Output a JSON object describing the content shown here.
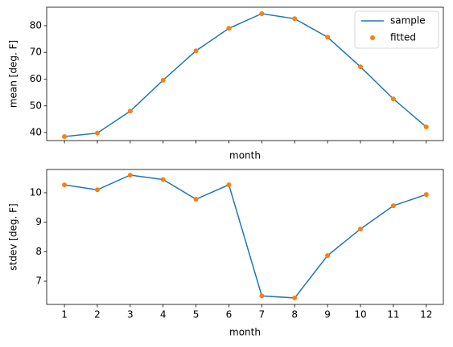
{
  "chart_data": [
    {
      "type": "line",
      "xlabel": "month",
      "ylabel": "mean [deg. F]",
      "x": [
        1,
        2,
        3,
        4,
        5,
        6,
        7,
        8,
        9,
        10,
        11,
        12
      ],
      "xlim": [
        0.46,
        12.52
      ],
      "xticks": [
        1,
        2,
        3,
        4,
        5,
        6,
        7,
        8,
        9,
        10,
        11,
        12
      ],
      "show_xtick_labels": false,
      "ylim": [
        37.0,
        86.9
      ],
      "yticks": [
        40,
        50,
        60,
        70,
        80
      ],
      "legend": "upper right",
      "series": [
        {
          "name": "sample",
          "style": "line",
          "color": "#1f77b4",
          "values": [
            38.5,
            39.8,
            48,
            59.6,
            70.6,
            79,
            84.5,
            82.6,
            75.7,
            64.6,
            52.6,
            42.1
          ]
        },
        {
          "name": "fitted",
          "style": "marker",
          "color": "#ff7f0e",
          "values": [
            38.5,
            39.8,
            48,
            59.6,
            70.6,
            79,
            84.5,
            82.6,
            75.7,
            64.6,
            52.6,
            42.1
          ]
        }
      ]
    },
    {
      "type": "line",
      "xlabel": "month",
      "ylabel": "stdev [deg. F]",
      "x": [
        1,
        2,
        3,
        4,
        5,
        6,
        7,
        8,
        9,
        10,
        11,
        12
      ],
      "xlim": [
        0.46,
        12.52
      ],
      "xticks": [
        1,
        2,
        3,
        4,
        5,
        6,
        7,
        8,
        9,
        10,
        11,
        12
      ],
      "show_xtick_labels": true,
      "ylim": [
        6.21,
        10.79
      ],
      "yticks": [
        7,
        8,
        9,
        10
      ],
      "series": [
        {
          "style": "line",
          "color": "#1f77b4",
          "values": [
            10.27,
            10.1,
            10.6,
            10.45,
            9.78,
            10.27,
            6.5,
            6.43,
            7.87,
            8.77,
            9.56,
            9.94
          ]
        },
        {
          "style": "marker",
          "color": "#ff7f0e",
          "values": [
            10.27,
            10.1,
            10.6,
            10.45,
            9.78,
            10.27,
            6.5,
            6.43,
            7.87,
            8.77,
            9.56,
            9.94
          ]
        }
      ]
    }
  ]
}
